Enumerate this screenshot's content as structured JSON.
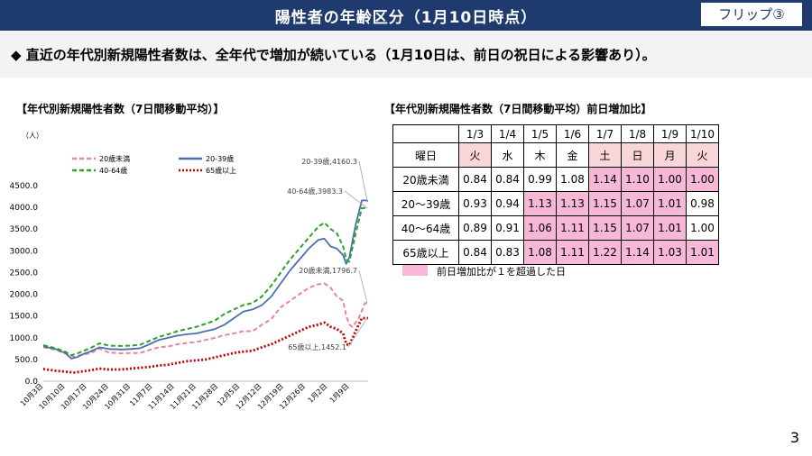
{
  "header": {
    "title": "陽性者の年齢区分（1月10日時点）",
    "flip_label": "フリップ③"
  },
  "headline": "◆ 直近の年代別新規陽性者数は、全年代で増加が続いている（1月10日は、前日の祝日による影響あり）。",
  "page_number": "3",
  "colors": {
    "banner": "#1f3a6e",
    "under20": "#e8849b",
    "age20_39": "#4a6fb0",
    "age40_64": "#2ca02c",
    "age65plus": "#c00000",
    "highlight": "#f6b8d6"
  },
  "chart_data": [
    {
      "type": "line",
      "title": "【年代別新規陽性者数（7日間移動平均）】",
      "unit": "（人）",
      "ylim": [
        0,
        4500
      ],
      "yticks": [
        "0.0",
        "500.0",
        "1000.0",
        "1500.0",
        "2000.0",
        "2500.0",
        "3000.0",
        "3500.0",
        "4000.0",
        "4500.0"
      ],
      "x_tick_labels": [
        "10月3日",
        "10月10日",
        "10月17日",
        "10月24日",
        "10月31日",
        "11月7日",
        "11月14日",
        "11月21日",
        "11月28日",
        "12月5日",
        "12月12日",
        "12月19日",
        "12月26日",
        "1月2日",
        "1月9日"
      ],
      "x_day_range": [
        0,
        99
      ],
      "legend_position": "top-left",
      "series": [
        {
          "name": "20歳未満",
          "style": "dashed",
          "points": [
            [
              0,
              780
            ],
            [
              4,
              720
            ],
            [
              7,
              640
            ],
            [
              10,
              560
            ],
            [
              13,
              620
            ],
            [
              15,
              640
            ],
            [
              18,
              750
            ],
            [
              21,
              660
            ],
            [
              25,
              640
            ],
            [
              28,
              650
            ],
            [
              31,
              650
            ],
            [
              34,
              720
            ],
            [
              37,
              780
            ],
            [
              40,
              800
            ],
            [
              43,
              850
            ],
            [
              46,
              880
            ],
            [
              49,
              900
            ],
            [
              52,
              950
            ],
            [
              55,
              1000
            ],
            [
              58,
              1060
            ],
            [
              61,
              1100
            ],
            [
              64,
              1150
            ],
            [
              67,
              1150
            ],
            [
              70,
              1300
            ],
            [
              73,
              1430
            ],
            [
              76,
              1700
            ],
            [
              79,
              1850
            ],
            [
              82,
              2000
            ],
            [
              85,
              2150
            ],
            [
              88,
              2230
            ],
            [
              90,
              2250
            ],
            [
              92,
              2150
            ],
            [
              94,
              1950
            ],
            [
              96,
              1850
            ],
            [
              97,
              1500
            ],
            [
              98,
              1300
            ],
            [
              99,
              1250
            ],
            [
              101,
              1450
            ],
            [
              103,
              1796.7
            ],
            [
              104,
              1796.7
            ]
          ],
          "end_label": "20歳未満,1796.7"
        },
        {
          "name": "20-39歳",
          "style": "solid",
          "points": [
            [
              0,
              800
            ],
            [
              4,
              740
            ],
            [
              7,
              650
            ],
            [
              9,
              520
            ],
            [
              11,
              560
            ],
            [
              13,
              630
            ],
            [
              15,
              680
            ],
            [
              18,
              780
            ],
            [
              21,
              740
            ],
            [
              25,
              730
            ],
            [
              28,
              740
            ],
            [
              31,
              760
            ],
            [
              34,
              850
            ],
            [
              37,
              950
            ],
            [
              40,
              1000
            ],
            [
              43,
              1050
            ],
            [
              46,
              1080
            ],
            [
              49,
              1100
            ],
            [
              52,
              1150
            ],
            [
              55,
              1200
            ],
            [
              58,
              1300
            ],
            [
              61,
              1450
            ],
            [
              64,
              1600
            ],
            [
              67,
              1650
            ],
            [
              70,
              1750
            ],
            [
              73,
              1950
            ],
            [
              76,
              2250
            ],
            [
              79,
              2550
            ],
            [
              82,
              2800
            ],
            [
              85,
              3050
            ],
            [
              88,
              3250
            ],
            [
              90,
              3280
            ],
            [
              92,
              3100
            ],
            [
              94,
              3050
            ],
            [
              96,
              2900
            ],
            [
              97,
              2700
            ],
            [
              98,
              2850
            ],
            [
              100,
              3600
            ],
            [
              102,
              4160.3
            ],
            [
              103,
              4160.3
            ],
            [
              104,
              4150
            ]
          ],
          "end_label": "20-39歳,4160.3"
        },
        {
          "name": "40-64歳",
          "style": "dashed",
          "points": [
            [
              0,
              830
            ],
            [
              4,
              760
            ],
            [
              7,
              680
            ],
            [
              9,
              600
            ],
            [
              11,
              640
            ],
            [
              13,
              700
            ],
            [
              15,
              760
            ],
            [
              18,
              870
            ],
            [
              21,
              820
            ],
            [
              25,
              810
            ],
            [
              28,
              820
            ],
            [
              31,
              840
            ],
            [
              34,
              930
            ],
            [
              37,
              1020
            ],
            [
              40,
              1080
            ],
            [
              43,
              1150
            ],
            [
              46,
              1200
            ],
            [
              49,
              1250
            ],
            [
              52,
              1320
            ],
            [
              55,
              1400
            ],
            [
              58,
              1550
            ],
            [
              61,
              1650
            ],
            [
              64,
              1750
            ],
            [
              67,
              1800
            ],
            [
              70,
              1950
            ],
            [
              73,
              2200
            ],
            [
              76,
              2500
            ],
            [
              79,
              2800
            ],
            [
              82,
              3050
            ],
            [
              85,
              3300
            ],
            [
              88,
              3550
            ],
            [
              90,
              3650
            ],
            [
              92,
              3500
            ],
            [
              94,
              3400
            ],
            [
              96,
              3100
            ],
            [
              97,
              2800
            ],
            [
              98,
              2750
            ],
            [
              100,
              3400
            ],
            [
              102,
              3983.3
            ],
            [
              104,
              3983.3
            ]
          ],
          "end_label": "40-64歳,3983.3"
        },
        {
          "name": "65歳以上",
          "style": "dotted",
          "points": [
            [
              0,
              280
            ],
            [
              4,
              240
            ],
            [
              7,
              220
            ],
            [
              10,
              200
            ],
            [
              13,
              230
            ],
            [
              15,
              250
            ],
            [
              18,
              290
            ],
            [
              21,
              270
            ],
            [
              25,
              270
            ],
            [
              28,
              290
            ],
            [
              31,
              310
            ],
            [
              34,
              330
            ],
            [
              37,
              360
            ],
            [
              40,
              380
            ],
            [
              43,
              420
            ],
            [
              46,
              460
            ],
            [
              49,
              480
            ],
            [
              52,
              500
            ],
            [
              55,
              550
            ],
            [
              58,
              600
            ],
            [
              61,
              650
            ],
            [
              64,
              680
            ],
            [
              67,
              700
            ],
            [
              70,
              780
            ],
            [
              73,
              850
            ],
            [
              76,
              950
            ],
            [
              79,
              1050
            ],
            [
              82,
              1150
            ],
            [
              85,
              1250
            ],
            [
              88,
              1300
            ],
            [
              90,
              1350
            ],
            [
              92,
              1250
            ],
            [
              94,
              1200
            ],
            [
              96,
              1100
            ],
            [
              97,
              850
            ],
            [
              98,
              830
            ],
            [
              100,
              1150
            ],
            [
              102,
              1452.1
            ],
            [
              104,
              1452.1
            ]
          ],
          "end_label": "65歳以上,1452.1"
        }
      ]
    },
    {
      "type": "table",
      "title": "【年代別新規陽性者数（7日間移動平均）前日増加比】",
      "dates": [
        "1/3",
        "1/4",
        "1/5",
        "1/6",
        "1/7",
        "1/8",
        "1/9",
        "1/10"
      ],
      "weekday_label": "曜日",
      "weekdays": [
        "火",
        "水",
        "木",
        "金",
        "土",
        "日",
        "月",
        "火"
      ],
      "holiday_days": [
        0,
        4,
        5,
        6,
        7
      ],
      "rows": [
        {
          "label": "20歳未満",
          "values": [
            "0.84",
            "0.84",
            "0.99",
            "1.08",
            "1.14",
            "1.10",
            "1.00",
            "1.00"
          ],
          "highlight": [
            4,
            5,
            6,
            7
          ]
        },
        {
          "label": "20～39歳",
          "values": [
            "0.93",
            "0.94",
            "1.13",
            "1.13",
            "1.15",
            "1.07",
            "1.01",
            "0.98"
          ],
          "highlight": [
            2,
            3,
            4,
            5,
            6
          ]
        },
        {
          "label": "40～64歳",
          "values": [
            "0.89",
            "0.91",
            "1.06",
            "1.11",
            "1.15",
            "1.07",
            "1.01",
            "1.00"
          ],
          "highlight": [
            2,
            3,
            4,
            5,
            6
          ]
        },
        {
          "label": "65歳以上",
          "values": [
            "0.84",
            "0.83",
            "1.08",
            "1.11",
            "1.22",
            "1.14",
            "1.03",
            "1.01"
          ],
          "highlight": [
            2,
            3,
            4,
            5,
            6,
            7
          ]
        }
      ],
      "legend_note": "前日増加比が１を超過した日"
    }
  ]
}
